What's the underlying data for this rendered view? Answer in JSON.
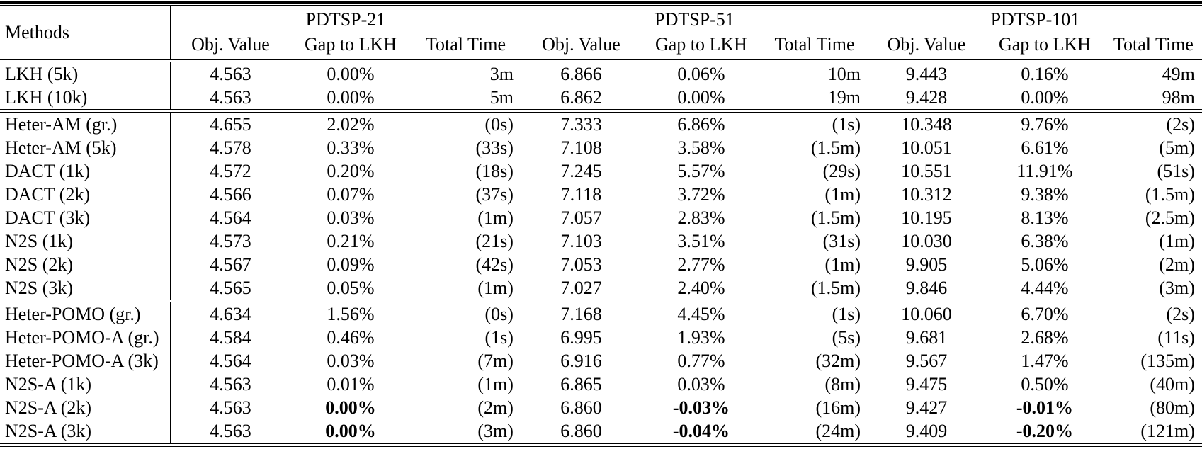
{
  "table": {
    "methods_header": "Methods",
    "sections": [
      {
        "title": "PDTSP-21",
        "columns": [
          "Obj. Value",
          "Gap to LKH",
          "Total Time"
        ]
      },
      {
        "title": "PDTSP-51",
        "columns": [
          "Obj. Value",
          "Gap to LKH",
          "Total Time"
        ]
      },
      {
        "title": "PDTSP-101",
        "columns": [
          "Obj. Value",
          "Gap to LKH",
          "Total Time"
        ]
      }
    ],
    "groups": [
      {
        "rows": [
          {
            "method": "LKH (5k)",
            "bold_gap": false,
            "cells": [
              [
                "4.563",
                "0.00%",
                "3m"
              ],
              [
                "6.866",
                "0.06%",
                "10m"
              ],
              [
                "9.443",
                "0.16%",
                "49m"
              ]
            ]
          },
          {
            "method": "LKH (10k)",
            "bold_gap": false,
            "cells": [
              [
                "4.563",
                "0.00%",
                "5m"
              ],
              [
                "6.862",
                "0.00%",
                "19m"
              ],
              [
                "9.428",
                "0.00%",
                "98m"
              ]
            ]
          }
        ]
      },
      {
        "rows": [
          {
            "method": "Heter-AM (gr.)",
            "bold_gap": false,
            "cells": [
              [
                "4.655",
                "2.02%",
                "(0s)"
              ],
              [
                "7.333",
                "6.86%",
                "(1s)"
              ],
              [
                "10.348",
                "9.76%",
                "(2s)"
              ]
            ]
          },
          {
            "method": "Heter-AM (5k)",
            "bold_gap": false,
            "cells": [
              [
                "4.578",
                "0.33%",
                "(33s)"
              ],
              [
                "7.108",
                "3.58%",
                "(1.5m)"
              ],
              [
                "10.051",
                "6.61%",
                "(5m)"
              ]
            ]
          },
          {
            "method": "DACT (1k)",
            "bold_gap": false,
            "cells": [
              [
                "4.572",
                "0.20%",
                "(18s)"
              ],
              [
                "7.245",
                "5.57%",
                "(29s)"
              ],
              [
                "10.551",
                "11.91%",
                "(51s)"
              ]
            ]
          },
          {
            "method": "DACT (2k)",
            "bold_gap": false,
            "cells": [
              [
                "4.566",
                "0.07%",
                "(37s)"
              ],
              [
                "7.118",
                "3.72%",
                "(1m)"
              ],
              [
                "10.312",
                "9.38%",
                "(1.5m)"
              ]
            ]
          },
          {
            "method": "DACT (3k)",
            "bold_gap": false,
            "cells": [
              [
                "4.564",
                "0.03%",
                "(1m)"
              ],
              [
                "7.057",
                "2.83%",
                "(1.5m)"
              ],
              [
                "10.195",
                "8.13%",
                "(2.5m)"
              ]
            ]
          },
          {
            "method": "N2S (1k)",
            "bold_gap": false,
            "cells": [
              [
                "4.573",
                "0.21%",
                "(21s)"
              ],
              [
                "7.103",
                "3.51%",
                "(31s)"
              ],
              [
                "10.030",
                "6.38%",
                "(1m)"
              ]
            ]
          },
          {
            "method": "N2S (2k)",
            "bold_gap": false,
            "cells": [
              [
                "4.567",
                "0.09%",
                "(42s)"
              ],
              [
                "7.053",
                "2.77%",
                "(1m)"
              ],
              [
                "9.905",
                "5.06%",
                "(2m)"
              ]
            ]
          },
          {
            "method": "N2S (3k)",
            "bold_gap": false,
            "cells": [
              [
                "4.565",
                "0.05%",
                "(1m)"
              ],
              [
                "7.027",
                "2.40%",
                "(1.5m)"
              ],
              [
                "9.846",
                "4.44%",
                "(3m)"
              ]
            ]
          }
        ]
      },
      {
        "rows": [
          {
            "method": "Heter-POMO (gr.)",
            "bold_gap": false,
            "cells": [
              [
                "4.634",
                "1.56%",
                "(0s)"
              ],
              [
                "7.168",
                "4.45%",
                "(1s)"
              ],
              [
                "10.060",
                "6.70%",
                "(2s)"
              ]
            ]
          },
          {
            "method": "Heter-POMO-A (gr.)",
            "bold_gap": false,
            "cells": [
              [
                "4.584",
                "0.46%",
                "(1s)"
              ],
              [
                "6.995",
                "1.93%",
                "(5s)"
              ],
              [
                "9.681",
                "2.68%",
                "(11s)"
              ]
            ]
          },
          {
            "method": "Heter-POMO-A (3k)",
            "bold_gap": false,
            "cells": [
              [
                "4.564",
                "0.03%",
                "(7m)"
              ],
              [
                "6.916",
                "0.77%",
                "(32m)"
              ],
              [
                "9.567",
                "1.47%",
                "(135m)"
              ]
            ]
          },
          {
            "method": "N2S-A (1k)",
            "bold_gap": false,
            "cells": [
              [
                "4.563",
                "0.01%",
                "(1m)"
              ],
              [
                "6.865",
                "0.03%",
                "(8m)"
              ],
              [
                "9.475",
                "0.50%",
                "(40m)"
              ]
            ]
          },
          {
            "method": "N2S-A (2k)",
            "bold_gap": true,
            "cells": [
              [
                "4.563",
                "0.00%",
                "(2m)"
              ],
              [
                "6.860",
                "-0.03%",
                "(16m)"
              ],
              [
                "9.427",
                "-0.01%",
                "(80m)"
              ]
            ]
          },
          {
            "method": "N2S-A (3k)",
            "bold_gap": true,
            "cells": [
              [
                "4.563",
                "0.00%",
                "(3m)"
              ],
              [
                "6.860",
                "-0.04%",
                "(24m)"
              ],
              [
                "9.409",
                "-0.20%",
                "(121m)"
              ]
            ]
          }
        ]
      }
    ]
  }
}
